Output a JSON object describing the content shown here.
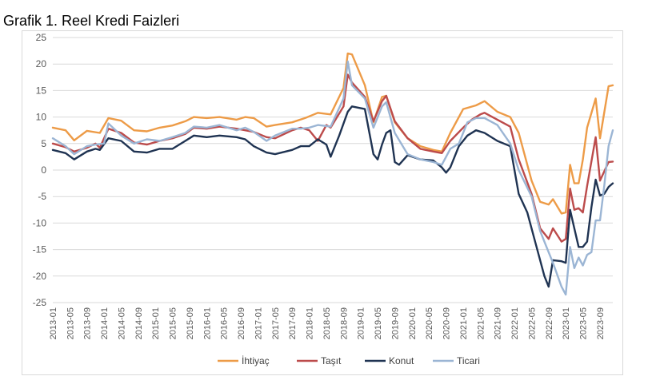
{
  "page": {
    "title": "Grafik 1. Reel Kredi Faizleri"
  },
  "chart_data": {
    "type": "line",
    "title": "Grafik 1. Reel Kredi Faizleri",
    "xlabel": "",
    "ylabel": "",
    "ylim": [
      -25,
      25
    ],
    "yticks": [
      25,
      20,
      15,
      10,
      5,
      0,
      -5,
      -10,
      -15,
      -20,
      -25
    ],
    "grid": true,
    "legend_position": "bottom",
    "x_start": "2013-01",
    "x_end": "2023-12",
    "x_tick_labels": [
      "2013-01",
      "2013-05",
      "2013-09",
      "2014-01",
      "2014-05",
      "2014-09",
      "2015-01",
      "2015-05",
      "2015-09",
      "2016-01",
      "2016-05",
      "2016-09",
      "2017-01",
      "2017-05",
      "2017-09",
      "2018-01",
      "2018-05",
      "2018-09",
      "2019-01",
      "2019-05",
      "2019-09",
      "2020-01",
      "2020-05",
      "2020-09",
      "2021-01",
      "2021-05",
      "2021-09",
      "2022-01",
      "2022-05",
      "2022-09",
      "2023-01",
      "2023-05",
      "2023-09"
    ],
    "series": [
      {
        "name": "İhtiyaç",
        "color": "#ED9B47",
        "points": [
          [
            "2013-01",
            8
          ],
          [
            "2013-04",
            7.5
          ],
          [
            "2013-06",
            5.6
          ],
          [
            "2013-09",
            7.4
          ],
          [
            "2013-12",
            7
          ],
          [
            "2014-02",
            9.8
          ],
          [
            "2014-05",
            9.3
          ],
          [
            "2014-08",
            7.5
          ],
          [
            "2014-11",
            7.3
          ],
          [
            "2015-02",
            8
          ],
          [
            "2015-05",
            8.4
          ],
          [
            "2015-08",
            9.2
          ],
          [
            "2015-10",
            10
          ],
          [
            "2016-01",
            9.8
          ],
          [
            "2016-04",
            10
          ],
          [
            "2016-08",
            9.5
          ],
          [
            "2016-10",
            10
          ],
          [
            "2016-12",
            9.8
          ],
          [
            "2017-03",
            8.2
          ],
          [
            "2017-05",
            8.5
          ],
          [
            "2017-09",
            9
          ],
          [
            "2017-12",
            9.8
          ],
          [
            "2018-03",
            10.8
          ],
          [
            "2018-06",
            10.5
          ],
          [
            "2018-09",
            15.5
          ],
          [
            "2018-10",
            22
          ],
          [
            "2018-11",
            21.8
          ],
          [
            "2019-02",
            16
          ],
          [
            "2019-04",
            9
          ],
          [
            "2019-06",
            13.8
          ],
          [
            "2019-07",
            14
          ],
          [
            "2019-09",
            9
          ],
          [
            "2019-12",
            6
          ],
          [
            "2020-03",
            4.5
          ],
          [
            "2020-06",
            3.8
          ],
          [
            "2020-08",
            3.5
          ],
          [
            "2020-10",
            7
          ],
          [
            "2021-01",
            11.5
          ],
          [
            "2021-04",
            12.2
          ],
          [
            "2021-06",
            13
          ],
          [
            "2021-09",
            11
          ],
          [
            "2021-12",
            10
          ],
          [
            "2022-02",
            7
          ],
          [
            "2022-05",
            -2
          ],
          [
            "2022-07",
            -6
          ],
          [
            "2022-09",
            -6.5
          ],
          [
            "2022-10",
            -5.5
          ],
          [
            "2022-12",
            -8.2
          ],
          [
            "2023-01",
            -8
          ],
          [
            "2023-02",
            1
          ],
          [
            "2023-03",
            -2.5
          ],
          [
            "2023-04",
            -2.5
          ],
          [
            "2023-05",
            2
          ],
          [
            "2023-06",
            8
          ],
          [
            "2023-08",
            13.5
          ],
          [
            "2023-09",
            6
          ],
          [
            "2023-11",
            15.8
          ],
          [
            "2023-12",
            16
          ]
        ]
      },
      {
        "name": "Taşıt",
        "color": "#BC4B4B",
        "points": [
          [
            "2013-01",
            5
          ],
          [
            "2013-04",
            4.3
          ],
          [
            "2013-06",
            3.5
          ],
          [
            "2013-09",
            4.2
          ],
          [
            "2013-11",
            5
          ],
          [
            "2013-12",
            4.2
          ],
          [
            "2014-02",
            7.8
          ],
          [
            "2014-05",
            7
          ],
          [
            "2014-08",
            5.2
          ],
          [
            "2014-11",
            4.8
          ],
          [
            "2015-02",
            5.5
          ],
          [
            "2015-05",
            6
          ],
          [
            "2015-08",
            6.8
          ],
          [
            "2015-10",
            8
          ],
          [
            "2016-01",
            7.8
          ],
          [
            "2016-04",
            8.2
          ],
          [
            "2016-08",
            7.8
          ],
          [
            "2016-10",
            7.5
          ],
          [
            "2016-12",
            7.2
          ],
          [
            "2017-03",
            6.2
          ],
          [
            "2017-05",
            6
          ],
          [
            "2017-09",
            7.5
          ],
          [
            "2017-11",
            8
          ],
          [
            "2018-01",
            7.5
          ],
          [
            "2018-03",
            5.5
          ],
          [
            "2018-05",
            8.5
          ],
          [
            "2018-06",
            8
          ],
          [
            "2018-09",
            12
          ],
          [
            "2018-10",
            18
          ],
          [
            "2018-11",
            16.5
          ],
          [
            "2019-02",
            13.8
          ],
          [
            "2019-04",
            9.2
          ],
          [
            "2019-06",
            13
          ],
          [
            "2019-07",
            14
          ],
          [
            "2019-09",
            9.2
          ],
          [
            "2019-12",
            6
          ],
          [
            "2020-03",
            4
          ],
          [
            "2020-06",
            3.5
          ],
          [
            "2020-08",
            3.2
          ],
          [
            "2020-10",
            5.5
          ],
          [
            "2021-01",
            8
          ],
          [
            "2021-03",
            9.5
          ],
          [
            "2021-05",
            10.5
          ],
          [
            "2021-06",
            10.8
          ],
          [
            "2021-09",
            9.5
          ],
          [
            "2021-12",
            8.2
          ],
          [
            "2022-02",
            2
          ],
          [
            "2022-05",
            -4.5
          ],
          [
            "2022-07",
            -11
          ],
          [
            "2022-09",
            -13
          ],
          [
            "2022-10",
            -11
          ],
          [
            "2022-12",
            -13.5
          ],
          [
            "2023-01",
            -13
          ],
          [
            "2023-02",
            -3.5
          ],
          [
            "2023-03",
            -7.5
          ],
          [
            "2023-04",
            -7.2
          ],
          [
            "2023-05",
            -8
          ],
          [
            "2023-06",
            -3
          ],
          [
            "2023-08",
            6.2
          ],
          [
            "2023-09",
            -2
          ],
          [
            "2023-11",
            1.5
          ],
          [
            "2023-12",
            1.6
          ]
        ]
      },
      {
        "name": "Konut",
        "color": "#1F3352",
        "points": [
          [
            "2013-01",
            3.8
          ],
          [
            "2013-04",
            3.2
          ],
          [
            "2013-06",
            2
          ],
          [
            "2013-09",
            3.5
          ],
          [
            "2013-11",
            4
          ],
          [
            "2013-12",
            3.8
          ],
          [
            "2014-02",
            6
          ],
          [
            "2014-05",
            5.5
          ],
          [
            "2014-08",
            3.5
          ],
          [
            "2014-11",
            3.3
          ],
          [
            "2015-02",
            4
          ],
          [
            "2015-05",
            4
          ],
          [
            "2015-08",
            5.5
          ],
          [
            "2015-10",
            6.5
          ],
          [
            "2016-01",
            6.2
          ],
          [
            "2016-04",
            6.5
          ],
          [
            "2016-08",
            6.2
          ],
          [
            "2016-10",
            5.8
          ],
          [
            "2016-12",
            4.5
          ],
          [
            "2017-03",
            3.3
          ],
          [
            "2017-05",
            3
          ],
          [
            "2017-09",
            3.8
          ],
          [
            "2017-11",
            4.5
          ],
          [
            "2018-01",
            4.5
          ],
          [
            "2018-03",
            5.8
          ],
          [
            "2018-05",
            4.8
          ],
          [
            "2018-06",
            2.5
          ],
          [
            "2018-08",
            6.5
          ],
          [
            "2018-10",
            11
          ],
          [
            "2018-11",
            12
          ],
          [
            "2019-02",
            11.5
          ],
          [
            "2019-04",
            3
          ],
          [
            "2019-05",
            2
          ],
          [
            "2019-06",
            4.8
          ],
          [
            "2019-07",
            7
          ],
          [
            "2019-08",
            7.5
          ],
          [
            "2019-09",
            1.5
          ],
          [
            "2019-10",
            1
          ],
          [
            "2019-12",
            2.8
          ],
          [
            "2020-03",
            2
          ],
          [
            "2020-06",
            1.8
          ],
          [
            "2020-08",
            0.5
          ],
          [
            "2020-09",
            -0.5
          ],
          [
            "2020-10",
            0.5
          ],
          [
            "2020-12",
            4.5
          ],
          [
            "2021-02",
            6.5
          ],
          [
            "2021-04",
            7.5
          ],
          [
            "2021-06",
            7
          ],
          [
            "2021-09",
            5.5
          ],
          [
            "2021-12",
            4.5
          ],
          [
            "2022-02",
            -4.5
          ],
          [
            "2022-04",
            -8
          ],
          [
            "2022-06",
            -14
          ],
          [
            "2022-08",
            -20
          ],
          [
            "2022-09",
            -22
          ],
          [
            "2022-10",
            -17
          ],
          [
            "2022-12",
            -17.2
          ],
          [
            "2023-01",
            -17.5
          ],
          [
            "2023-02",
            -7.5
          ],
          [
            "2023-03",
            -11
          ],
          [
            "2023-04",
            -14.5
          ],
          [
            "2023-05",
            -14.5
          ],
          [
            "2023-06",
            -13.5
          ],
          [
            "2023-07",
            -7
          ],
          [
            "2023-08",
            -1.8
          ],
          [
            "2023-09",
            -4.8
          ],
          [
            "2023-10",
            -4.5
          ],
          [
            "2023-11",
            -3.2
          ],
          [
            "2023-12",
            -2.5
          ]
        ]
      },
      {
        "name": "Ticari",
        "color": "#9BB5D4",
        "points": [
          [
            "2013-01",
            6
          ],
          [
            "2013-04",
            4.5
          ],
          [
            "2013-06",
            3
          ],
          [
            "2013-09",
            4.5
          ],
          [
            "2013-11",
            4.8
          ],
          [
            "2014-01",
            5
          ],
          [
            "2014-02",
            8.8
          ],
          [
            "2014-05",
            6.5
          ],
          [
            "2014-08",
            5
          ],
          [
            "2014-11",
            5.8
          ],
          [
            "2015-02",
            5.5
          ],
          [
            "2015-05",
            6.2
          ],
          [
            "2015-08",
            7
          ],
          [
            "2015-10",
            8.2
          ],
          [
            "2016-01",
            8
          ],
          [
            "2016-04",
            8.5
          ],
          [
            "2016-08",
            7.5
          ],
          [
            "2016-10",
            8
          ],
          [
            "2016-12",
            7.2
          ],
          [
            "2017-03",
            5.5
          ],
          [
            "2017-05",
            6.5
          ],
          [
            "2017-09",
            7.8
          ],
          [
            "2017-11",
            7.8
          ],
          [
            "2018-01",
            8
          ],
          [
            "2018-03",
            8.5
          ],
          [
            "2018-06",
            8.2
          ],
          [
            "2018-09",
            13.5
          ],
          [
            "2018-10",
            20.5
          ],
          [
            "2018-11",
            16
          ],
          [
            "2019-02",
            13.5
          ],
          [
            "2019-04",
            8
          ],
          [
            "2019-06",
            12
          ],
          [
            "2019-07",
            12.8
          ],
          [
            "2019-09",
            7
          ],
          [
            "2019-12",
            3
          ],
          [
            "2020-03",
            2
          ],
          [
            "2020-06",
            1.5
          ],
          [
            "2020-08",
            1
          ],
          [
            "2020-10",
            4
          ],
          [
            "2020-12",
            5
          ],
          [
            "2021-02",
            9
          ],
          [
            "2021-04",
            9.8
          ],
          [
            "2021-06",
            9.8
          ],
          [
            "2021-09",
            8.5
          ],
          [
            "2021-12",
            5
          ],
          [
            "2022-02",
            0
          ],
          [
            "2022-05",
            -5
          ],
          [
            "2022-07",
            -11.5
          ],
          [
            "2022-09",
            -15.5
          ],
          [
            "2022-10",
            -17.5
          ],
          [
            "2022-12",
            -22
          ],
          [
            "2023-01",
            -23.5
          ],
          [
            "2023-02",
            -14.5
          ],
          [
            "2023-03",
            -18.5
          ],
          [
            "2023-04",
            -16.5
          ],
          [
            "2023-05",
            -18
          ],
          [
            "2023-06",
            -16
          ],
          [
            "2023-07",
            -15.5
          ],
          [
            "2023-08",
            -9.5
          ],
          [
            "2023-09",
            -9.5
          ],
          [
            "2023-10",
            -3
          ],
          [
            "2023-11",
            4.5
          ],
          [
            "2023-12",
            7.5
          ]
        ]
      }
    ]
  }
}
